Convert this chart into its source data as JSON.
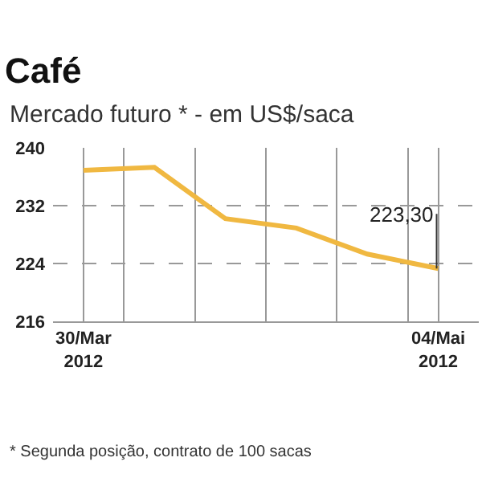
{
  "chart_data": {
    "type": "line",
    "title": "Café",
    "subtitle": "Mercado futuro * - em US$/saca",
    "x": [
      "2012-03-30",
      "2012-04-06",
      "2012-04-13",
      "2012-04-20",
      "2012-04-27",
      "2012-05-04"
    ],
    "series": [
      {
        "color": "#f0b841",
        "values": [
          236.9,
          237.3,
          230.2,
          228.9,
          225.3,
          223.3
        ]
      }
    ],
    "xlim": [
      "2012-03-27",
      "2012-05-08"
    ],
    "xticks": [
      {
        "value": "2012-03-30",
        "label": "30/Mar\n2012"
      },
      {
        "value": "2012-04-03",
        "label": null
      },
      {
        "value": "2012-04-10",
        "label": null
      },
      {
        "value": "2012-04-17",
        "label": null
      },
      {
        "value": "2012-04-24",
        "label": null
      },
      {
        "value": "2012-05-01",
        "label": null
      },
      {
        "value": "2012-05-04",
        "label": "04/Mai\n2012"
      }
    ],
    "ylim": [
      216,
      240
    ],
    "yticks": [
      216,
      224,
      232,
      240
    ],
    "grid": true,
    "marker": "none",
    "line_style": "solid",
    "annotations": [
      {
        "text": "223,30",
        "x": "2012-05-04",
        "y": 223.3
      },
      "* Segunda posição, contrato de 100 sacas"
    ]
  }
}
